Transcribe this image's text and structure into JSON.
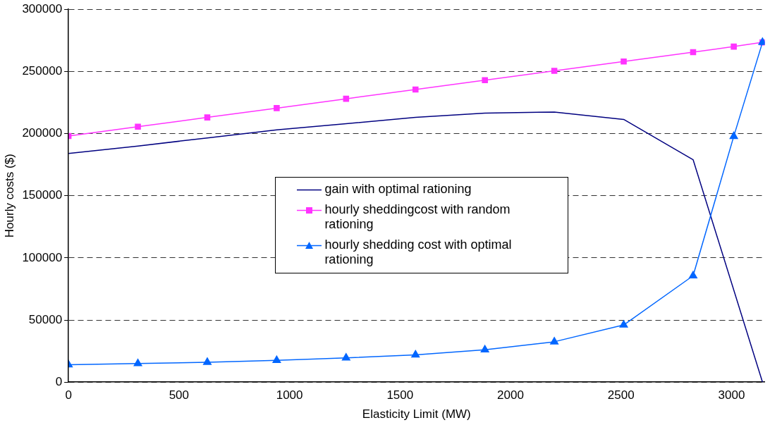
{
  "chart_data": {
    "type": "line",
    "xlabel": "Elasticity Limit (MW)",
    "ylabel": "Hourly costs ($)",
    "xlim": [
      0,
      3150
    ],
    "xticks": [
      0,
      500,
      1000,
      1500,
      2000,
      2500,
      3000
    ],
    "ylim": [
      0,
      300000
    ],
    "yticks": [
      0,
      50000,
      100000,
      150000,
      200000,
      250000,
      300000
    ],
    "grid": "y",
    "legend": "center",
    "series": [
      {
        "name": "gain with optimal rationing",
        "color": "#000080",
        "marker": "none",
        "x": [
          0,
          314,
          628,
          942,
          1256,
          1570,
          1884,
          2198,
          2512,
          2826,
          3140
        ],
        "values": [
          184000,
          190000,
          196500,
          203000,
          208000,
          213000,
          216500,
          217300,
          211400,
          179000,
          0
        ]
      },
      {
        "name": "hourly sheddingcost with random rationing",
        "color": "#ff33ff",
        "marker": "square",
        "x": [
          0,
          314,
          628,
          942,
          1256,
          1570,
          1884,
          2198,
          2512,
          2826,
          3010,
          3140
        ],
        "values": [
          198000,
          205500,
          213000,
          220500,
          228000,
          235500,
          243000,
          250500,
          258000,
          265500,
          270000,
          273400
        ]
      },
      {
        "name": "hourly shedding cost with optimal rationing",
        "color": "#0066ff",
        "marker": "triangle",
        "x": [
          0,
          314,
          628,
          942,
          1256,
          1570,
          1884,
          2198,
          2512,
          2826,
          3010,
          3140
        ],
        "values": [
          14000,
          15000,
          16000,
          17500,
          19500,
          22000,
          26000,
          32500,
          46000,
          85600,
          197800,
          273400
        ]
      }
    ]
  }
}
